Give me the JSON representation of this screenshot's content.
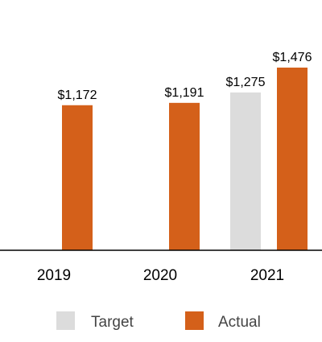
{
  "chart_data": {
    "type": "bar",
    "categories": [
      "2019",
      "2020",
      "2021"
    ],
    "series": [
      {
        "name": "Target",
        "color": "#dcdcdc",
        "values": [
          null,
          null,
          1275
        ]
      },
      {
        "name": "Actual",
        "color": "#d4601a",
        "values": [
          1172,
          1191,
          1476
        ]
      }
    ],
    "data_labels": {
      "Target": [
        null,
        null,
        "$1,275"
      ],
      "Actual": [
        "$1,172",
        "$1,191",
        "$1,476"
      ]
    },
    "ylim": [
      0,
      1476
    ],
    "grid": false,
    "legend_position": "bottom",
    "title": "",
    "xlabel": "",
    "ylabel": ""
  }
}
